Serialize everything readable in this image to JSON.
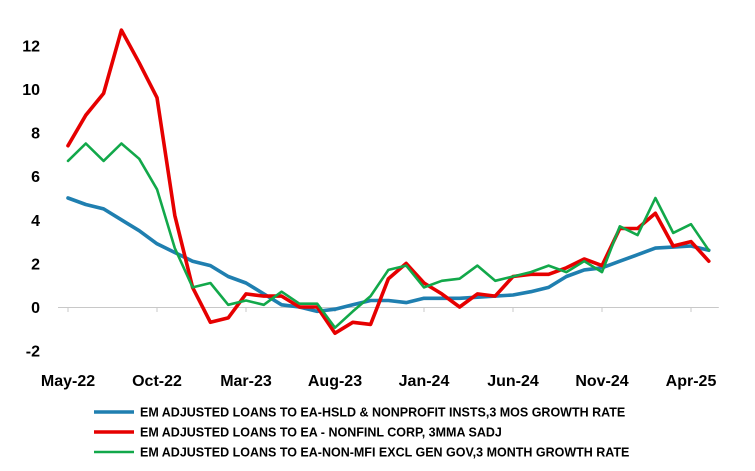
{
  "chart_data": {
    "type": "line",
    "x": [
      "May-22",
      "Jun-22",
      "Jul-22",
      "Aug-22",
      "Sep-22",
      "Oct-22",
      "Nov-22",
      "Dec-22",
      "Jan-23",
      "Feb-23",
      "Mar-23",
      "Apr-23",
      "May-23",
      "Jun-23",
      "Jul-23",
      "Aug-23",
      "Sep-23",
      "Oct-23",
      "Nov-23",
      "Dec-23",
      "Jan-24",
      "Feb-24",
      "Mar-24",
      "Apr-24",
      "May-24",
      "Jun-24",
      "Jul-24",
      "Aug-24",
      "Sep-24",
      "Oct-24",
      "Nov-24",
      "Dec-24",
      "Jan-25",
      "Feb-25",
      "Mar-25",
      "Apr-25",
      "May-25"
    ],
    "x_tick_labels": [
      "May-22",
      "Oct-22",
      "Mar-23",
      "Aug-23",
      "Jan-24",
      "Jun-24",
      "Nov-24",
      "Apr-25"
    ],
    "x_tick_every": 5,
    "y_ticks": [
      "-2",
      "0",
      "2",
      "4",
      "6",
      "8",
      "10",
      "12"
    ],
    "ylim": [
      -2,
      13
    ],
    "grid": false,
    "legend_position": "bottom",
    "series": [
      {
        "name": "EM ADJUSTED LOANS TO EA-HSLD & NONPROFIT INSTS,3 MOS GROWTH RATE",
        "color": "#1f7fb0",
        "values": [
          5.0,
          4.7,
          4.5,
          4.0,
          3.5,
          2.9,
          2.5,
          2.1,
          1.9,
          1.4,
          1.1,
          0.6,
          0.1,
          0.0,
          -0.2,
          -0.1,
          0.1,
          0.3,
          0.3,
          0.2,
          0.4,
          0.4,
          0.4,
          0.45,
          0.5,
          0.55,
          0.7,
          0.9,
          1.4,
          1.7,
          1.8,
          2.1,
          2.4,
          2.7,
          2.75,
          2.8,
          2.6
        ]
      },
      {
        "name": "EM ADJUSTED LOANS TO EA - NONFINL CORP, 3MMA SADJ",
        "color": "#e60000",
        "values": [
          7.4,
          8.8,
          9.8,
          12.7,
          11.2,
          9.6,
          4.2,
          0.9,
          -0.7,
          -0.5,
          0.6,
          0.5,
          0.5,
          0.0,
          0.0,
          -1.2,
          -0.7,
          -0.8,
          1.3,
          2.0,
          1.1,
          0.6,
          0.0,
          0.6,
          0.5,
          1.4,
          1.5,
          1.5,
          1.8,
          2.2,
          1.9,
          3.6,
          3.6,
          4.3,
          2.8,
          3.0,
          2.1
        ]
      },
      {
        "name": "EM ADJUSTED LOANS TO EA-NON-MFI EXCL GEN GOV,3 MONTH GROWTH RATE",
        "color": "#12a84a",
        "values": [
          6.7,
          7.5,
          6.7,
          7.5,
          6.8,
          5.4,
          2.7,
          0.9,
          1.1,
          0.1,
          0.3,
          0.1,
          0.7,
          0.15,
          0.15,
          -0.95,
          -0.2,
          0.5,
          1.7,
          1.9,
          0.9,
          1.2,
          1.3,
          1.9,
          1.2,
          1.4,
          1.6,
          1.9,
          1.6,
          2.1,
          1.6,
          3.7,
          3.3,
          5.0,
          3.4,
          3.8,
          2.6
        ]
      }
    ]
  }
}
